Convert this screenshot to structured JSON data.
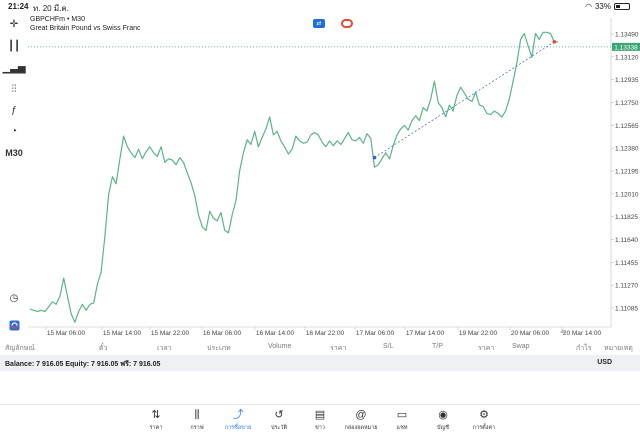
{
  "status_bar": {
    "time": "21:24",
    "date": "ท. 20 มี.ค.",
    "battery": "33%"
  },
  "symbol_header": {
    "symbol": "GBPCHFm • M30",
    "description": "Great Britain Pound vs Swiss Franc"
  },
  "toolbar": {
    "items": [
      {
        "name": "crosshair-icon",
        "glyph": "+"
      },
      {
        "name": "candles-icon",
        "glyph": "▮"
      },
      {
        "name": "bars-icon",
        "glyph": "≡"
      },
      {
        "name": "indicators-icon",
        "glyph": "⫶"
      },
      {
        "name": "function-icon",
        "glyph": "ƒ"
      },
      {
        "name": "objects-icon",
        "glyph": "◔"
      }
    ],
    "timeframe": "M30"
  },
  "colors": {
    "line": "#5cb487",
    "accent": "#2f7cf6",
    "price_tag": "#3ea57a",
    "grid": "#d9d9d9"
  },
  "chart_data": {
    "type": "line",
    "y_ticks": [
      "1.13490",
      "1.13120",
      "1.12935",
      "1.12750",
      "1.12565",
      "1.12380",
      "1.12195",
      "1.12010",
      "1.11825",
      "1.11640",
      "1.11455",
      "1.11270",
      "1.11085"
    ],
    "x_ticks": [
      "15 Mar 06:00",
      "15 Mar 14:00",
      "15 Mar 22:00",
      "16 Mar 06:00",
      "16 Mar 14:00",
      "16 Mar 22:00",
      "17 Mar 06:00",
      "17 Mar 14:00",
      "19 Mar 22:00",
      "20 Mar 06:00",
      "20 Mar 14:00"
    ],
    "current_price": "1.13338",
    "current_price_value": 1.13338,
    "y_range": [
      1.1099,
      1.1358
    ],
    "series": [
      {
        "values": [
          1.1114,
          1.1113,
          1.1112,
          1.1113,
          1.1112,
          1.1116,
          1.112,
          1.1118,
          1.1125,
          1.114,
          1.1125,
          1.111,
          1.1103,
          1.1112,
          1.1118,
          1.1113,
          1.1118,
          1.1119,
          1.1135,
          1.1145,
          1.1175,
          1.121,
          1.1225,
          1.1219,
          1.124,
          1.1259,
          1.125,
          1.1245,
          1.1241,
          1.1248,
          1.124,
          1.1246,
          1.125,
          1.1245,
          1.1242,
          1.125,
          1.1237,
          1.124,
          1.1239,
          1.1235,
          1.1241,
          1.1237,
          1.1228,
          1.122,
          1.1209,
          1.1193,
          1.1183,
          1.118,
          1.1196,
          1.119,
          1.1188,
          1.1195,
          1.118,
          1.1178,
          1.1193,
          1.1205,
          1.123,
          1.1245,
          1.1256,
          1.1252,
          1.1263,
          1.125,
          1.1258,
          1.1265,
          1.1275,
          1.126,
          1.1263,
          1.1255,
          1.125,
          1.1244,
          1.1248,
          1.1259,
          1.1255,
          1.1253,
          1.1254,
          1.126,
          1.1262,
          1.126,
          1.1254,
          1.125,
          1.1255,
          1.1251,
          1.1255,
          1.1252,
          1.1257,
          1.1262,
          1.1256,
          1.1255,
          1.1258,
          1.1253,
          1.1261,
          1.1257,
          1.1233,
          1.1235,
          1.124,
          1.1245,
          1.124,
          1.1251,
          1.126,
          1.1265,
          1.1268,
          1.1264,
          1.1272,
          1.1276,
          1.1272,
          1.1283,
          1.128,
          1.129,
          1.1305,
          1.1287,
          1.1283,
          1.1275,
          1.1285,
          1.128,
          1.1293,
          1.13,
          1.1295,
          1.129,
          1.1288,
          1.1296,
          1.1285,
          1.1284,
          1.1278,
          1.1277,
          1.128,
          1.1278,
          1.1275,
          1.128,
          1.129,
          1.1305,
          1.132,
          1.134,
          1.1345,
          1.1335,
          1.1325,
          1.1345,
          1.134,
          1.1346,
          1.1346,
          1.1345,
          1.1338,
          1.1338
        ]
      }
    ],
    "trendline": {
      "from": {
        "x_index": 92,
        "y": 1.1241
      },
      "to": {
        "x_index": 140,
        "y": 1.1338
      }
    }
  },
  "columns": [
    "สัญลักษณ์",
    "ตั๋ว",
    "เวลา",
    "ประเภท",
    "Volume",
    "ราคา",
    "S/L",
    "T/P",
    "ราคา",
    "Swap",
    "กำไร",
    "หมายเหตุ"
  ],
  "balance": {
    "text": "Balance: 7 916.05 Equity: 7 916.05 ฟรี: 7 916.05",
    "currency": "USD"
  },
  "tabs": [
    {
      "name": "tab-quotes",
      "icon": "quotes-icon",
      "glyph": "⇅",
      "label": "ราคา"
    },
    {
      "name": "tab-chart",
      "icon": "chart-icon",
      "glyph": "⫼",
      "label": "กราฟ"
    },
    {
      "name": "tab-trade",
      "icon": "trade-icon",
      "glyph": "⤴",
      "label": "การซื้อขาย"
    },
    {
      "name": "tab-history",
      "icon": "history-icon",
      "glyph": "↺",
      "label": "ประวัติ"
    },
    {
      "name": "tab-news",
      "icon": "news-icon",
      "glyph": "▤",
      "label": "ข่าว"
    },
    {
      "name": "tab-mailbox",
      "icon": "mailbox-icon",
      "glyph": "@",
      "label": "กล่องจดหมาย"
    },
    {
      "name": "tab-chats",
      "icon": "chat-icon",
      "glyph": "▭",
      "label": "แชท"
    },
    {
      "name": "tab-accounts",
      "icon": "accounts-icon",
      "glyph": "◉",
      "label": "บัญชี"
    },
    {
      "name": "tab-settings",
      "icon": "gear-icon",
      "glyph": "⚙",
      "label": "การตั้งค่า"
    }
  ],
  "active_tab": "tab-trade"
}
